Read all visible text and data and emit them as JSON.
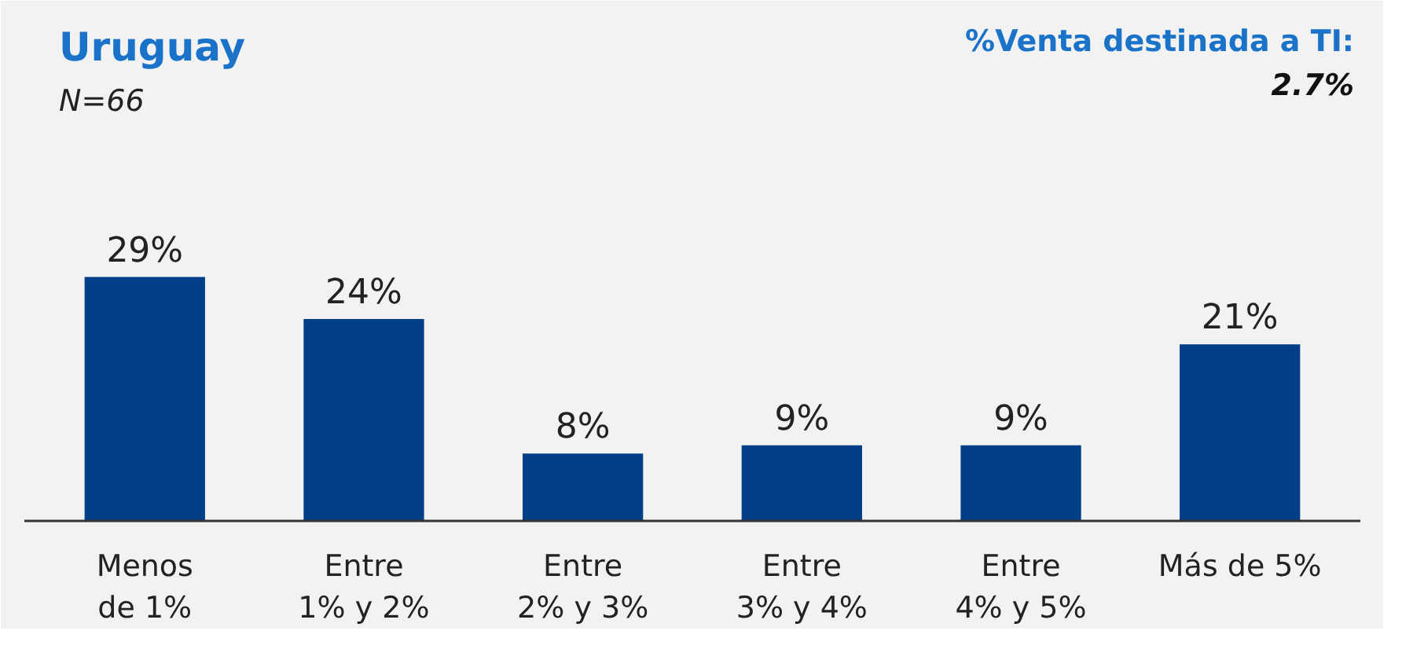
{
  "chart_data": {
    "type": "bar",
    "title": "Uruguay",
    "subtitle": "N=66",
    "annotations": [
      "%Venta destinada a TI:",
      "2.7%"
    ],
    "categories": [
      "Menos\nde 1%",
      "Entre\n1% y 2%",
      "Entre\n2% y 3%",
      "Entre\n3% y 4%",
      "Entre\n4% y 5%",
      "Más de 5%"
    ],
    "values": [
      29,
      24,
      8,
      9,
      9,
      21
    ],
    "color": "#003f87",
    "data_labels": true,
    "value_labels": [
      "29%",
      "24%",
      "8%",
      "9%",
      "9%",
      "21%"
    ]
  }
}
